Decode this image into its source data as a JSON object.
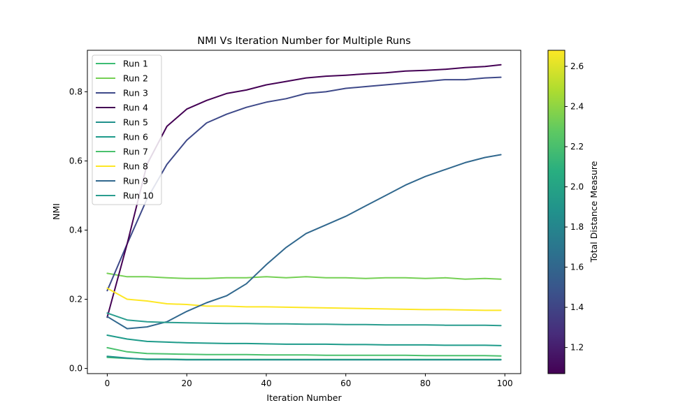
{
  "chart_data": {
    "type": "line",
    "title": "NMI Vs Iteration Number for Multiple Runs",
    "xlabel": "Iteration Number",
    "ylabel": "NMI",
    "xlim": [
      -5,
      104
    ],
    "ylim": [
      -0.015,
      0.92
    ],
    "xticks": [
      0,
      20,
      40,
      60,
      80,
      100
    ],
    "xtick_labels": [
      "0",
      "20",
      "40",
      "60",
      "80",
      "100"
    ],
    "yticks": [
      0.0,
      0.2,
      0.4,
      0.6,
      0.8
    ],
    "ytick_labels": [
      "0.0",
      "0.2",
      "0.4",
      "0.6",
      "0.8"
    ],
    "grid": false,
    "legend_position": "upper-left",
    "colorbar": {
      "label": "Total Distance Measure",
      "min": 1.07,
      "max": 2.68,
      "ticks": [
        1.2,
        1.4,
        1.6,
        1.8,
        2.0,
        2.2,
        2.4,
        2.6
      ],
      "tick_labels": [
        "1.2",
        "1.4",
        "1.6",
        "1.8",
        "2.0",
        "2.2",
        "2.4",
        "2.6"
      ],
      "colormap": "viridis"
    },
    "x": [
      0,
      5,
      10,
      15,
      20,
      25,
      30,
      35,
      40,
      45,
      50,
      55,
      60,
      65,
      70,
      75,
      80,
      85,
      90,
      95,
      99
    ],
    "series": [
      {
        "name": "Run 1",
        "color": "#3dbc74",
        "values": [
          0.032,
          0.029,
          0.027,
          0.027,
          0.026,
          0.026,
          0.026,
          0.026,
          0.026,
          0.026,
          0.026,
          0.026,
          0.026,
          0.026,
          0.026,
          0.026,
          0.026,
          0.026,
          0.026,
          0.026,
          0.026
        ]
      },
      {
        "name": "Run 2",
        "color": "#75d054",
        "values": [
          0.275,
          0.265,
          0.265,
          0.262,
          0.26,
          0.26,
          0.262,
          0.262,
          0.265,
          0.262,
          0.265,
          0.262,
          0.262,
          0.26,
          0.262,
          0.262,
          0.26,
          0.262,
          0.258,
          0.26,
          0.258
        ]
      },
      {
        "name": "Run 3",
        "color": "#3e4989",
        "values": [
          0.225,
          0.36,
          0.49,
          0.59,
          0.66,
          0.71,
          0.735,
          0.755,
          0.77,
          0.78,
          0.795,
          0.8,
          0.81,
          0.815,
          0.82,
          0.825,
          0.83,
          0.835,
          0.835,
          0.84,
          0.842
        ]
      },
      {
        "name": "Run 4",
        "color": "#440154",
        "values": [
          0.148,
          0.36,
          0.59,
          0.7,
          0.75,
          0.775,
          0.795,
          0.805,
          0.82,
          0.83,
          0.84,
          0.845,
          0.848,
          0.852,
          0.855,
          0.86,
          0.862,
          0.865,
          0.87,
          0.873,
          0.878
        ]
      },
      {
        "name": "Run 5",
        "color": "#21918c",
        "values": [
          0.035,
          0.03,
          0.026,
          0.026,
          0.025,
          0.025,
          0.025,
          0.025,
          0.025,
          0.025,
          0.025,
          0.025,
          0.025,
          0.025,
          0.025,
          0.025,
          0.025,
          0.025,
          0.025,
          0.025,
          0.025
        ]
      },
      {
        "name": "Run 6",
        "color": "#1e9b8a",
        "values": [
          0.096,
          0.085,
          0.078,
          0.076,
          0.074,
          0.073,
          0.072,
          0.072,
          0.071,
          0.07,
          0.07,
          0.07,
          0.069,
          0.069,
          0.068,
          0.068,
          0.068,
          0.067,
          0.067,
          0.067,
          0.066
        ]
      },
      {
        "name": "Run 7",
        "color": "#4ac16d",
        "values": [
          0.06,
          0.048,
          0.043,
          0.042,
          0.041,
          0.04,
          0.04,
          0.04,
          0.039,
          0.039,
          0.039,
          0.038,
          0.038,
          0.038,
          0.038,
          0.038,
          0.037,
          0.037,
          0.037,
          0.037,
          0.036
        ]
      },
      {
        "name": "Run 8",
        "color": "#fde725",
        "values": [
          0.232,
          0.2,
          0.195,
          0.187,
          0.185,
          0.18,
          0.18,
          0.178,
          0.178,
          0.177,
          0.176,
          0.175,
          0.174,
          0.173,
          0.172,
          0.171,
          0.17,
          0.17,
          0.169,
          0.168,
          0.168
        ]
      },
      {
        "name": "Run 9",
        "color": "#31688e",
        "values": [
          0.15,
          0.115,
          0.12,
          0.135,
          0.165,
          0.19,
          0.21,
          0.245,
          0.3,
          0.35,
          0.39,
          0.415,
          0.44,
          0.47,
          0.5,
          0.53,
          0.555,
          0.575,
          0.595,
          0.61,
          0.618
        ]
      },
      {
        "name": "Run 10",
        "color": "#2a9d8f",
        "values": [
          0.16,
          0.14,
          0.135,
          0.133,
          0.132,
          0.131,
          0.13,
          0.13,
          0.129,
          0.129,
          0.128,
          0.128,
          0.127,
          0.127,
          0.126,
          0.126,
          0.126,
          0.125,
          0.125,
          0.125,
          0.124
        ]
      }
    ]
  }
}
